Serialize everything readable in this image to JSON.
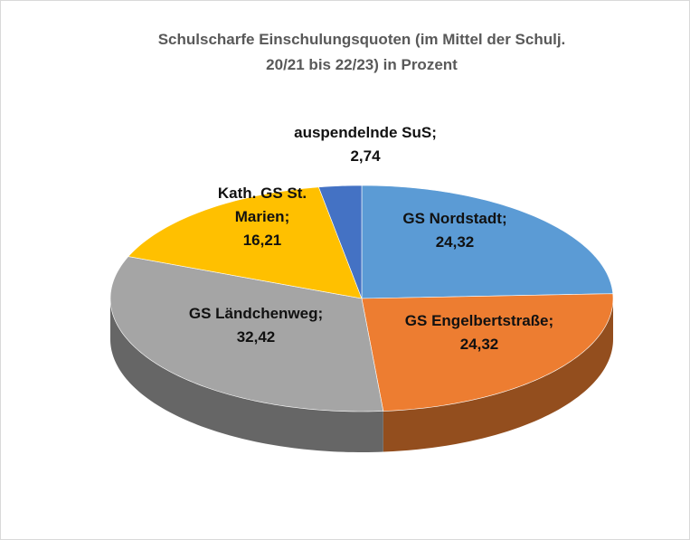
{
  "chart_data": {
    "type": "pie",
    "title_lines": [
      "Schulscharfe Einschulungsquoten (im Mittel der Schulj.",
      "20/21 bis 22/23) in Prozent"
    ],
    "categories": [
      "GS Nordstadt",
      "GS Engelbertstraße",
      "GS Ländchenweg",
      "Kath. GS St. Marien",
      "auspendelnde SuS"
    ],
    "values": [
      24.32,
      24.32,
      32.42,
      16.21,
      2.74
    ],
    "value_labels": [
      "24,32",
      "24,32",
      "32,42",
      "16,21",
      "2,74"
    ],
    "label_separator": ";",
    "colors": [
      "#5b9bd5",
      "#ed7d31",
      "#a5a5a5",
      "#ffc000",
      "#4472c4"
    ]
  }
}
